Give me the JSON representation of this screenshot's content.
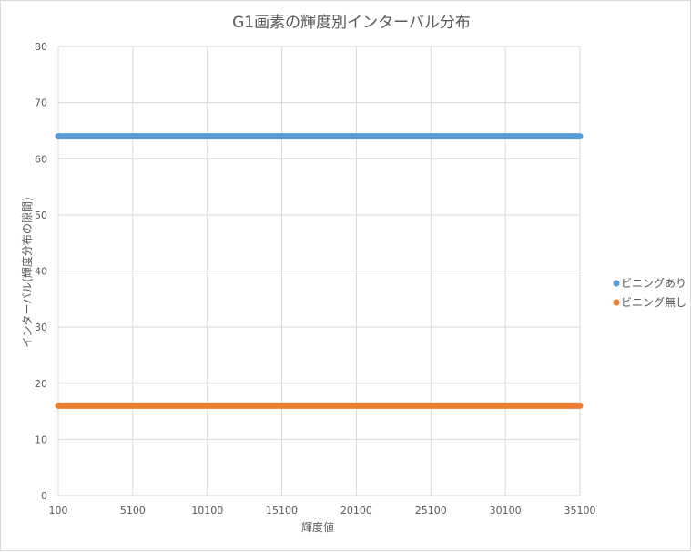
{
  "chart_data": {
    "type": "scatter",
    "title": "G1画素の輝度別インターバル分布",
    "xlabel": "輝度値",
    "ylabel": "インターバル(輝度分布の隙間)",
    "xlim": [
      100,
      35100
    ],
    "ylim": [
      0,
      80
    ],
    "x_ticks": [
      "100",
      "5100",
      "10100",
      "15100",
      "20100",
      "25100",
      "30100",
      "35100"
    ],
    "y_ticks": [
      "0",
      "10",
      "20",
      "30",
      "40",
      "50",
      "60",
      "70",
      "80"
    ],
    "grid": true,
    "legend_position": "right",
    "series": [
      {
        "name": "ビニングあり",
        "color": "#5B9BD5",
        "x_range": [
          100,
          35100
        ],
        "y": 64
      },
      {
        "name": "ビニング無し",
        "color": "#ED7D31",
        "x_range": [
          100,
          35100
        ],
        "y": 16
      }
    ]
  }
}
